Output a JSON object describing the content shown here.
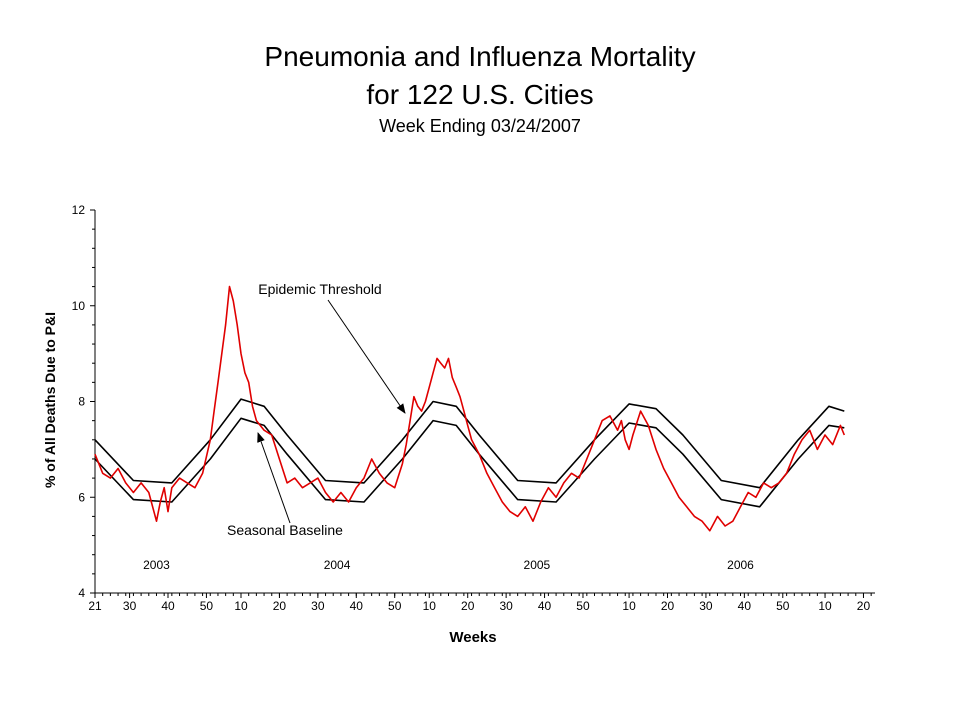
{
  "chart_data": {
    "type": "line",
    "title": "Pneumonia and Influenza Mortality",
    "title_line2": "for 122 U.S. Cities",
    "subtitle": "Week Ending 03/24/2007",
    "xlabel": "Weeks",
    "ylabel": "% of All Deaths Due to P&I",
    "ylim": [
      4,
      12
    ],
    "yticks": [
      "4",
      "6",
      "8",
      "10",
      "12"
    ],
    "xlim": [
      0,
      203
    ],
    "x_unit": "weeks since MMWR week 21 of 2003",
    "xtick_labels": [
      {
        "week": 0,
        "label": "21"
      },
      {
        "week": 9,
        "label": "30"
      },
      {
        "week": 19,
        "label": "40"
      },
      {
        "week": 29,
        "label": "50"
      },
      {
        "week": 38,
        "label": "10"
      },
      {
        "week": 48,
        "label": "20"
      },
      {
        "week": 58,
        "label": "30"
      },
      {
        "week": 68,
        "label": "40"
      },
      {
        "week": 78,
        "label": "50"
      },
      {
        "week": 87,
        "label": "10"
      },
      {
        "week": 97,
        "label": "20"
      },
      {
        "week": 107,
        "label": "30"
      },
      {
        "week": 117,
        "label": "40"
      },
      {
        "week": 127,
        "label": "50"
      },
      {
        "week": 139,
        "label": "10"
      },
      {
        "week": 149,
        "label": "20"
      },
      {
        "week": 159,
        "label": "30"
      },
      {
        "week": 169,
        "label": "40"
      },
      {
        "week": 179,
        "label": "50"
      },
      {
        "week": 190,
        "label": "10"
      },
      {
        "week": 200,
        "label": "20"
      }
    ],
    "year_labels": [
      {
        "week": 16,
        "label": "2003"
      },
      {
        "week": 63,
        "label": "2004"
      },
      {
        "week": 115,
        "label": "2005"
      },
      {
        "week": 168,
        "label": "2006"
      }
    ],
    "annotations": [
      {
        "text": "Epidemic Threshold",
        "points_to": "Epidemic Threshold"
      },
      {
        "text": "Seasonal Baseline",
        "points_to": "Seasonal Baseline"
      }
    ],
    "grid": false,
    "legend": "none",
    "series": [
      {
        "name": "Epidemic Threshold",
        "color": "#000000",
        "x": [
          0,
          10,
          20,
          30,
          38,
          44,
          50,
          60,
          70,
          80,
          88,
          94,
          100,
          110,
          120,
          130,
          139,
          146,
          153,
          163,
          173,
          183,
          191,
          195
        ],
        "values": [
          7.2,
          6.35,
          6.3,
          7.2,
          8.05,
          7.9,
          7.3,
          6.35,
          6.3,
          7.2,
          8.0,
          7.9,
          7.3,
          6.35,
          6.3,
          7.2,
          7.95,
          7.85,
          7.3,
          6.35,
          6.2,
          7.2,
          7.9,
          7.8
        ]
      },
      {
        "name": "Seasonal Baseline",
        "color": "#000000",
        "x": [
          0,
          10,
          20,
          30,
          38,
          44,
          50,
          60,
          70,
          80,
          88,
          94,
          100,
          110,
          120,
          130,
          139,
          146,
          153,
          163,
          173,
          183,
          191,
          195
        ],
        "values": [
          6.8,
          5.95,
          5.9,
          6.8,
          7.65,
          7.5,
          6.9,
          5.95,
          5.9,
          6.8,
          7.6,
          7.5,
          6.9,
          5.95,
          5.9,
          6.8,
          7.55,
          7.45,
          6.9,
          5.95,
          5.8,
          6.8,
          7.5,
          7.45
        ]
      },
      {
        "name": "P&I Mortality",
        "color": "#e00000",
        "x": [
          0,
          2,
          4,
          6,
          8,
          10,
          12,
          14,
          16,
          17,
          18,
          19,
          20,
          22,
          24,
          26,
          28,
          30,
          31,
          32,
          33,
          34,
          35,
          36,
          37,
          38,
          39,
          40,
          41,
          42,
          44,
          46,
          48,
          50,
          52,
          54,
          56,
          58,
          60,
          62,
          64,
          66,
          68,
          70,
          72,
          74,
          76,
          78,
          80,
          81,
          82,
          83,
          84,
          85,
          86,
          87,
          88,
          89,
          90,
          91,
          92,
          93,
          94,
          95,
          96,
          97,
          98,
          100,
          102,
          104,
          106,
          108,
          110,
          112,
          114,
          116,
          118,
          120,
          122,
          124,
          126,
          128,
          130,
          132,
          134,
          136,
          137,
          138,
          139,
          140,
          142,
          144,
          146,
          148,
          150,
          152,
          154,
          156,
          158,
          160,
          162,
          164,
          166,
          168,
          170,
          172,
          174,
          176,
          178,
          180,
          182,
          184,
          186,
          188,
          190,
          192,
          194,
          195
        ],
        "values": [
          6.9,
          6.5,
          6.4,
          6.6,
          6.3,
          6.1,
          6.3,
          6.1,
          5.5,
          5.9,
          6.2,
          5.7,
          6.2,
          6.4,
          6.3,
          6.2,
          6.5,
          7.2,
          7.8,
          8.4,
          9.0,
          9.6,
          10.4,
          10.1,
          9.6,
          9.0,
          8.6,
          8.4,
          7.9,
          7.6,
          7.4,
          7.3,
          6.8,
          6.3,
          6.4,
          6.2,
          6.3,
          6.4,
          6.1,
          5.9,
          6.1,
          5.9,
          6.2,
          6.4,
          6.8,
          6.5,
          6.3,
          6.2,
          6.7,
          7.1,
          7.6,
          8.1,
          7.9,
          7.8,
          8.0,
          8.3,
          8.6,
          8.9,
          8.8,
          8.7,
          8.9,
          8.5,
          8.3,
          8.1,
          7.8,
          7.5,
          7.2,
          6.9,
          6.5,
          6.2,
          5.9,
          5.7,
          5.6,
          5.8,
          5.5,
          5.9,
          6.2,
          6.0,
          6.3,
          6.5,
          6.4,
          6.8,
          7.2,
          7.6,
          7.7,
          7.4,
          7.6,
          7.2,
          7.0,
          7.3,
          7.8,
          7.5,
          7.0,
          6.6,
          6.3,
          6.0,
          5.8,
          5.6,
          5.5,
          5.3,
          5.6,
          5.4,
          5.5,
          5.8,
          6.1,
          6.0,
          6.3,
          6.2,
          6.3,
          6.5,
          6.9,
          7.2,
          7.4,
          7.0,
          7.3,
          7.1,
          7.5,
          7.3
        ]
      }
    ]
  }
}
